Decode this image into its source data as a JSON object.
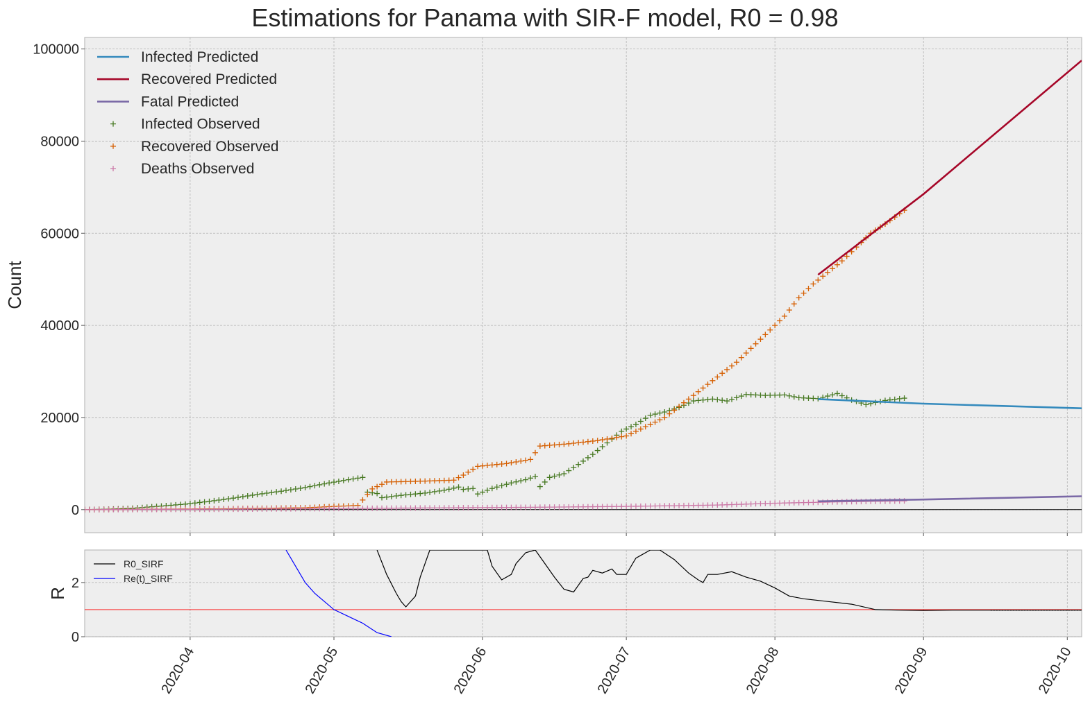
{
  "chart_data": [
    {
      "type": "line",
      "title": "Estimations for Panama with SIR-F model, R0 = 0.98",
      "ylabel": "Count",
      "xlabel": "",
      "xlim": [
        "2020-03-10",
        "2020-10-04"
      ],
      "ylim": [
        -5000,
        102500
      ],
      "yticks": [
        0,
        20000,
        40000,
        60000,
        80000,
        100000
      ],
      "ytick_labels": [
        "0",
        "20000",
        "40000",
        "60000",
        "80000",
        "100000"
      ],
      "grid": true,
      "legend_position": "top-left",
      "legend": [
        "Infected Predicted",
        "Recovered Predicted",
        "Fatal Predicted",
        "Infected Observed",
        "Recovered Observed",
        "Deaths Observed"
      ],
      "colors": {
        "infected_pred": "#348ABD",
        "recovered_pred": "#A60628",
        "fatal_pred": "#7A68A6",
        "infected_obs": "#467821",
        "recovered_obs": "#D55E00",
        "deaths_obs": "#CC79A7"
      },
      "series_predicted": [
        {
          "name": "Infected Predicted",
          "x": [
            "2020-08-10",
            "2020-09-01",
            "2020-10-04"
          ],
          "y": [
            24000,
            23000,
            22000
          ]
        },
        {
          "name": "Recovered Predicted",
          "x": [
            "2020-08-10",
            "2020-09-01",
            "2020-10-04"
          ],
          "y": [
            51000,
            68500,
            97500
          ]
        },
        {
          "name": "Fatal Predicted",
          "x": [
            "2020-08-10",
            "2020-09-01",
            "2020-10-04"
          ],
          "y": [
            1800,
            2200,
            2900
          ]
        }
      ],
      "series_observed": [
        {
          "name": "Infected Observed",
          "key": "infected",
          "points": [
            [
              "2020-03-10",
              0
            ],
            [
              "2020-03-15",
              100
            ],
            [
              "2020-03-20",
              300
            ],
            [
              "2020-03-25",
              700
            ],
            [
              "2020-03-31",
              1200
            ],
            [
              "2020-04-05",
              1800
            ],
            [
              "2020-04-10",
              2500
            ],
            [
              "2020-04-15",
              3300
            ],
            [
              "2020-04-20",
              4000
            ],
            [
              "2020-04-25",
              4800
            ],
            [
              "2020-04-30",
              5800
            ],
            [
              "2020-05-04",
              6500
            ],
            [
              "2020-05-07",
              7000
            ],
            [
              "2020-05-08",
              3800
            ],
            [
              "2020-05-10",
              3500
            ],
            [
              "2020-05-11",
              2600
            ],
            [
              "2020-05-15",
              3100
            ],
            [
              "2020-05-20",
              3600
            ],
            [
              "2020-05-24",
              4200
            ],
            [
              "2020-05-27",
              4900
            ],
            [
              "2020-05-28",
              4400
            ],
            [
              "2020-05-30",
              4600
            ],
            [
              "2020-05-31",
              3400
            ],
            [
              "2020-06-03",
              4600
            ],
            [
              "2020-06-07",
              5800
            ],
            [
              "2020-06-10",
              6500
            ],
            [
              "2020-06-12",
              7200
            ],
            [
              "2020-06-13",
              5000
            ],
            [
              "2020-06-15",
              7000
            ],
            [
              "2020-06-18",
              7800
            ],
            [
              "2020-06-21",
              9800
            ],
            [
              "2020-06-24",
              12000
            ],
            [
              "2020-06-27",
              14500
            ],
            [
              "2020-06-30",
              17000
            ],
            [
              "2020-07-03",
              18500
            ],
            [
              "2020-07-06",
              20500
            ],
            [
              "2020-07-09",
              21200
            ],
            [
              "2020-07-12",
              22200
            ],
            [
              "2020-07-15",
              23600
            ],
            [
              "2020-07-19",
              24000
            ],
            [
              "2020-07-22",
              23600
            ],
            [
              "2020-07-26",
              25000
            ],
            [
              "2020-07-30",
              24800
            ],
            [
              "2020-08-03",
              24900
            ],
            [
              "2020-08-06",
              24300
            ],
            [
              "2020-08-10",
              24100
            ],
            [
              "2020-08-14",
              25200
            ],
            [
              "2020-08-17",
              23800
            ],
            [
              "2020-08-20",
              22800
            ],
            [
              "2020-08-24",
              23700
            ],
            [
              "2020-08-28",
              24200
            ]
          ]
        },
        {
          "name": "Recovered Observed",
          "key": "recovered",
          "points": [
            [
              "2020-03-10",
              0
            ],
            [
              "2020-04-10",
              200
            ],
            [
              "2020-04-25",
              400
            ],
            [
              "2020-05-01",
              700
            ],
            [
              "2020-05-06",
              900
            ],
            [
              "2020-05-09",
              4500
            ],
            [
              "2020-05-12",
              6000
            ],
            [
              "2020-05-20",
              6200
            ],
            [
              "2020-05-26",
              6400
            ],
            [
              "2020-05-28",
              7500
            ],
            [
              "2020-05-31",
              9400
            ],
            [
              "2020-06-06",
              10000
            ],
            [
              "2020-06-11",
              10900
            ],
            [
              "2020-06-13",
              13800
            ],
            [
              "2020-06-19",
              14300
            ],
            [
              "2020-06-25",
              15000
            ],
            [
              "2020-07-01",
              16000
            ],
            [
              "2020-07-04",
              17500
            ],
            [
              "2020-07-09",
              20000
            ],
            [
              "2020-07-14",
              24000
            ],
            [
              "2020-07-19",
              28000
            ],
            [
              "2020-07-24",
              32000
            ],
            [
              "2020-07-27",
              35000
            ],
            [
              "2020-07-31",
              39000
            ],
            [
              "2020-08-03",
              42000
            ],
            [
              "2020-08-06",
              46000
            ],
            [
              "2020-08-09",
              49000
            ],
            [
              "2020-08-12",
              51500
            ],
            [
              "2020-08-15",
              54000
            ],
            [
              "2020-08-18",
              57000
            ],
            [
              "2020-08-21",
              60000
            ],
            [
              "2020-08-24",
              62000
            ],
            [
              "2020-08-26",
              63500
            ],
            [
              "2020-08-28",
              65000
            ]
          ]
        },
        {
          "name": "Deaths Observed",
          "key": "deaths",
          "points": [
            [
              "2020-03-10",
              0
            ],
            [
              "2020-04-10",
              100
            ],
            [
              "2020-05-10",
              300
            ],
            [
              "2020-06-10",
              500
            ],
            [
              "2020-07-01",
              700
            ],
            [
              "2020-07-20",
              1000
            ],
            [
              "2020-08-01",
              1400
            ],
            [
              "2020-08-15",
              1700
            ],
            [
              "2020-08-28",
              1900
            ]
          ]
        }
      ]
    },
    {
      "type": "line",
      "title": "",
      "ylabel": "R",
      "xlabel": "",
      "xlim": [
        "2020-03-10",
        "2020-10-04"
      ],
      "ylim": [
        0,
        3.2
      ],
      "yticks": [
        0,
        2
      ],
      "ytick_labels": [
        "0",
        "2"
      ],
      "grid": true,
      "legend_position": "top-left",
      "legend": [
        "R0_SIRF",
        "Re(t)_SIRF"
      ],
      "reference_line": {
        "y": 1,
        "color": "#ff0000"
      },
      "xticks": [
        "2020-04-01",
        "2020-05-01",
        "2020-06-01",
        "2020-07-01",
        "2020-08-01",
        "2020-09-01",
        "2020-10-01"
      ],
      "xtick_labels": [
        "2020-04",
        "2020-05",
        "2020-06",
        "2020-07",
        "2020-08",
        "2020-09",
        "2020-10"
      ],
      "series": [
        {
          "name": "R0_SIRF",
          "color": "#000000",
          "x": [
            "2020-05-10",
            "2020-05-12",
            "2020-05-14",
            "2020-05-15",
            "2020-05-16",
            "2020-05-18",
            "2020-05-19",
            "2020-05-21",
            "2020-06-02",
            "2020-06-03",
            "2020-06-05",
            "2020-06-07",
            "2020-06-08",
            "2020-06-10",
            "2020-06-12",
            "2020-06-14",
            "2020-06-16",
            "2020-06-18",
            "2020-06-20",
            "2020-06-22",
            "2020-06-23",
            "2020-06-24",
            "2020-06-26",
            "2020-06-28",
            "2020-06-29",
            "2020-07-01",
            "2020-07-03",
            "2020-07-04",
            "2020-07-06",
            "2020-07-08",
            "2020-07-11",
            "2020-07-14",
            "2020-07-16",
            "2020-07-17",
            "2020-07-18",
            "2020-07-20",
            "2020-07-23",
            "2020-07-26",
            "2020-07-29",
            "2020-08-01",
            "2020-08-04",
            "2020-08-07",
            "2020-08-12",
            "2020-08-17",
            "2020-08-22",
            "2020-08-27",
            "2020-09-01",
            "2020-09-07",
            "2020-09-15",
            "2020-10-04"
          ],
          "y": [
            3.2,
            2.3,
            1.6,
            1.3,
            1.1,
            1.5,
            2.2,
            3.2,
            3.2,
            2.6,
            2.1,
            2.3,
            2.7,
            3.1,
            3.2,
            2.7,
            2.2,
            1.75,
            1.65,
            2.15,
            2.2,
            2.45,
            2.35,
            2.5,
            2.3,
            2.3,
            2.9,
            3.0,
            3.2,
            3.2,
            2.85,
            2.35,
            2.1,
            2.0,
            2.3,
            2.3,
            2.4,
            2.2,
            2.05,
            1.8,
            1.5,
            1.4,
            1.3,
            1.2,
            1.0,
            0.98,
            0.97,
            0.98,
            0.98,
            0.98
          ]
        },
        {
          "name": "Re(t)_SIRF",
          "color": "#0000ff",
          "x": [
            "2020-04-21",
            "2020-04-23",
            "2020-04-25",
            "2020-04-27",
            "2020-04-29",
            "2020-05-01",
            "2020-05-04",
            "2020-05-07",
            "2020-05-10",
            "2020-05-13"
          ],
          "y": [
            3.2,
            2.6,
            2.0,
            1.6,
            1.3,
            1.0,
            0.75,
            0.5,
            0.15,
            0.0
          ]
        }
      ]
    }
  ]
}
